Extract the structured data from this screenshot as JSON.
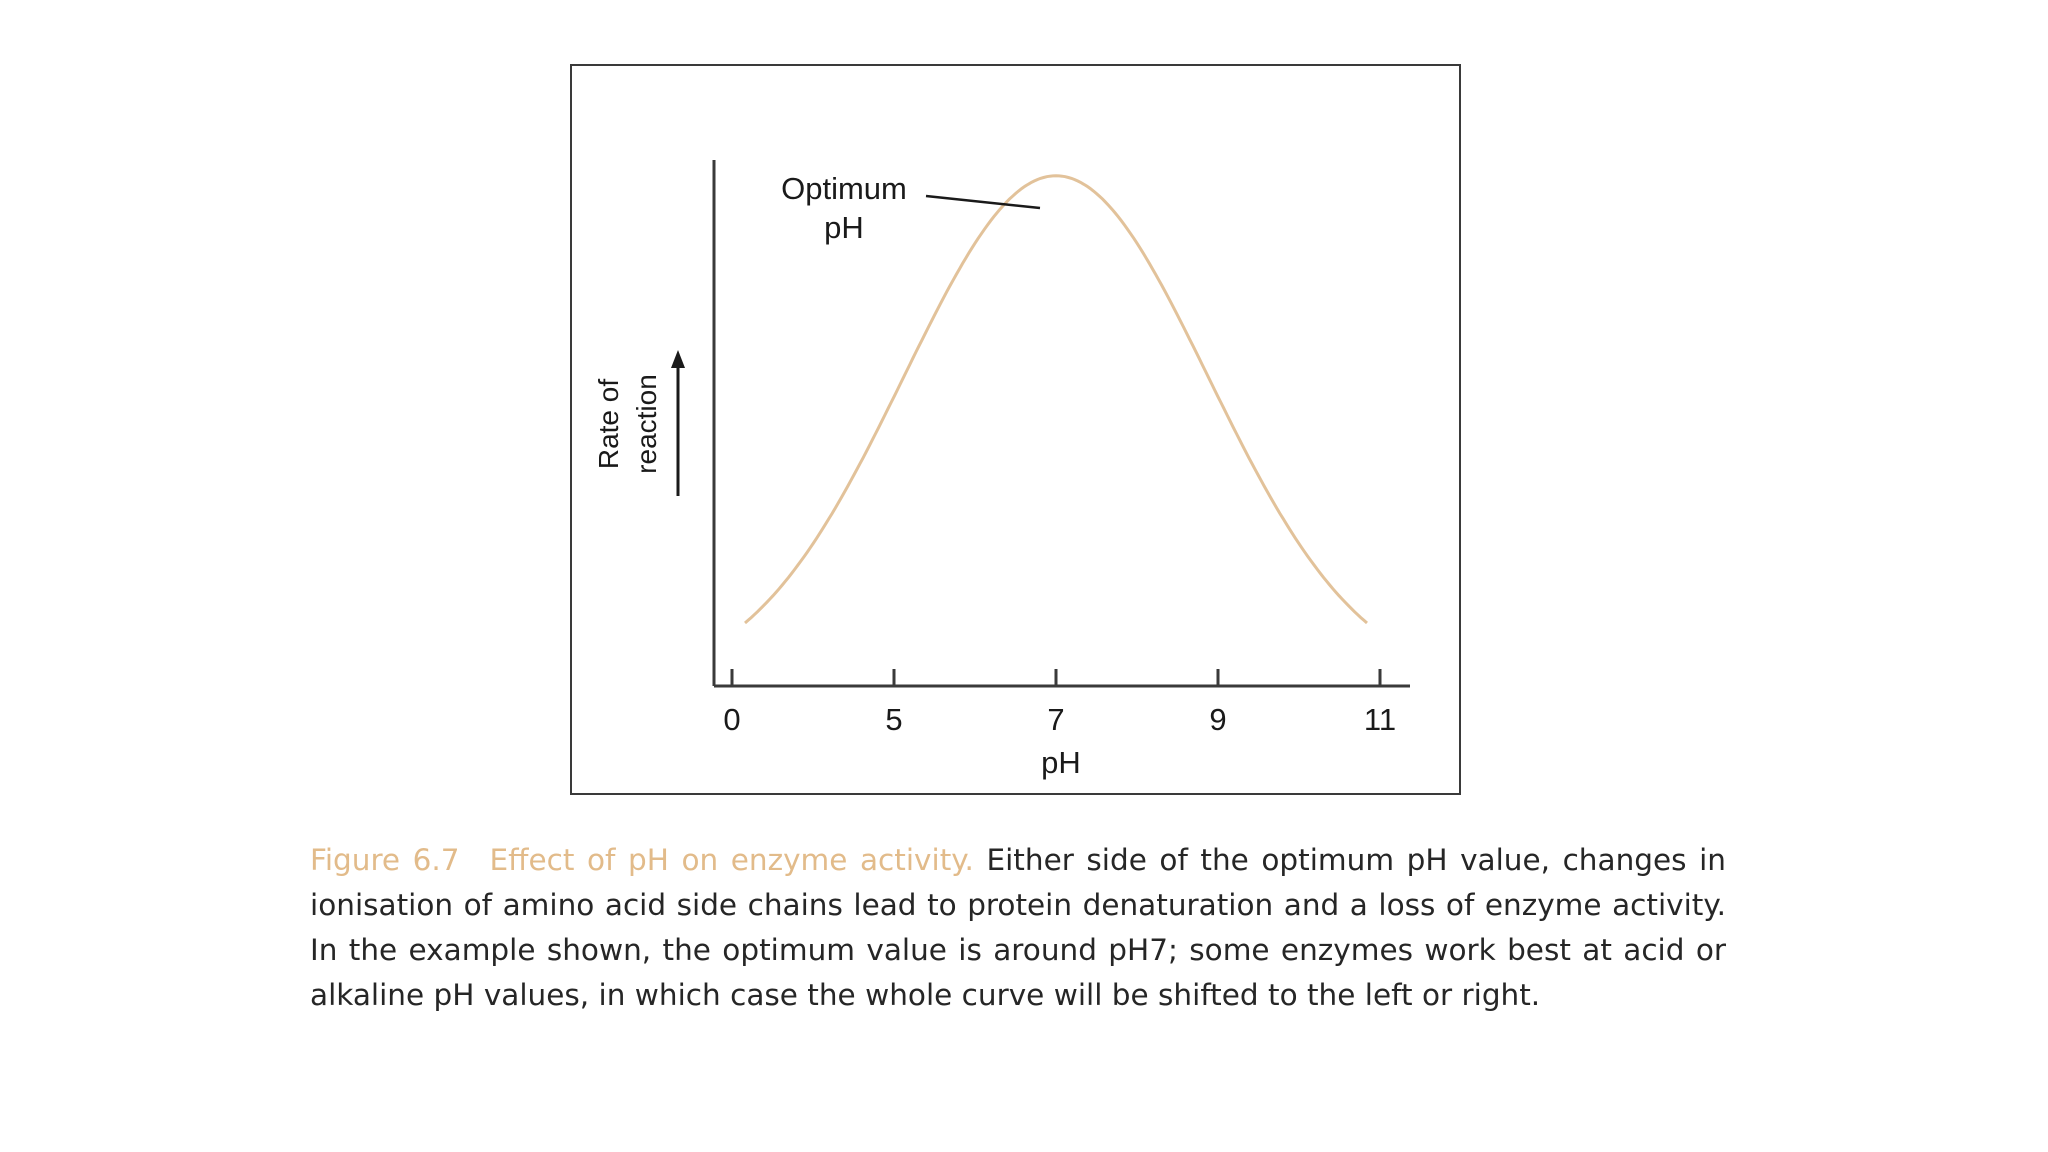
{
  "chart_data": {
    "type": "line",
    "title": "",
    "xlabel": "pH",
    "ylabel": "Rate of reaction",
    "ylabel_lines": [
      "Rate of",
      "reaction"
    ],
    "x_ticks": [
      "0",
      "5",
      "7",
      "9",
      "11"
    ],
    "y_ticks": [],
    "y_range": [
      0,
      1
    ],
    "grid": false,
    "legend": "none",
    "curve_color": "#e2c29a",
    "series": [
      {
        "x": [
          "0",
          "5",
          "7",
          "9",
          "11"
        ],
        "y": [
          0.04,
          0.55,
          0.97,
          0.55,
          0.04
        ]
      }
    ],
    "annotations": [
      {
        "text_lines": [
          "Optimum",
          "pH"
        ],
        "points_to_x": "7"
      }
    ]
  },
  "caption": {
    "number": "Figure 6.7",
    "title": "Effect of pH on enzyme activity.",
    "body": "Either side of the optimum pH value, changes in ionisation of amino acid side chains lead to protein denaturation and a loss of enzyme activity. In the example shown, the optimum value is around pH7; some enzymes work best at acid or alkaline pH values, in which case the whole curve will be shifted to the left or right."
  }
}
